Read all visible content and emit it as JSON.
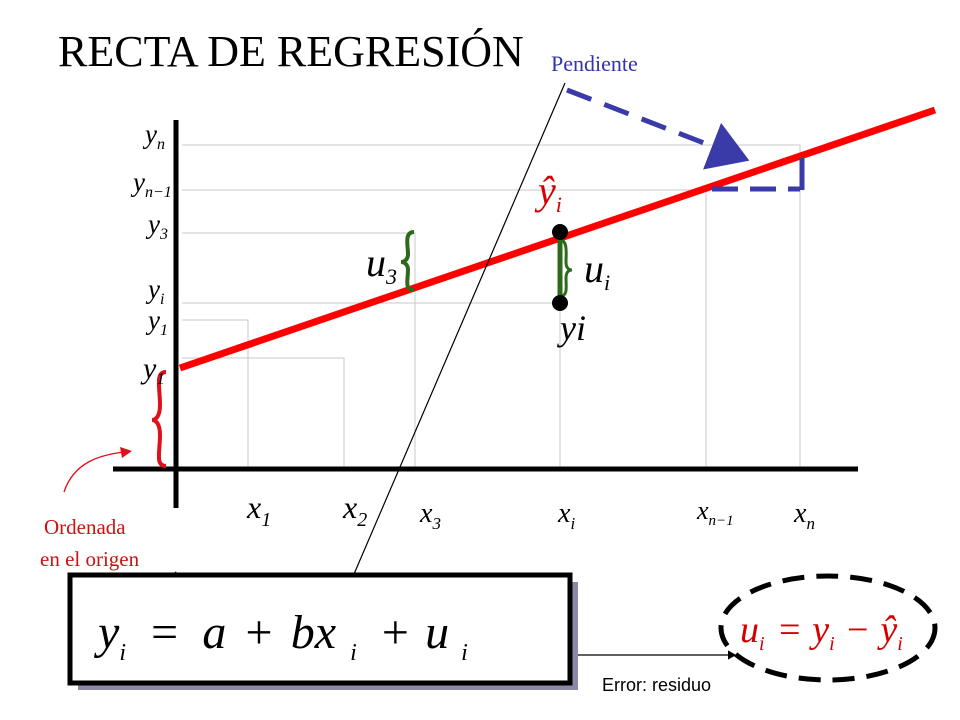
{
  "title": "RECTA DE REGRESIÓN",
  "labels": {
    "slope": "Pendiente",
    "intercept_line1": "Ordenada",
    "intercept_line2": "en el origen",
    "error": "Error: residuo",
    "yi_observed": "yi"
  },
  "colors": {
    "regression_line": "#ff0000",
    "slope_arrow": "#3a3aa8",
    "residual": "#2d6b1a",
    "intercept_brace": "#e0101a",
    "axes": "#000000"
  },
  "x_ticks": [
    {
      "base": "x",
      "sub": "1"
    },
    {
      "base": "x",
      "sub": "2"
    },
    {
      "base": "x",
      "sub": "3"
    },
    {
      "base": "x",
      "sub": "i"
    },
    {
      "base": "x",
      "sub": "n−1"
    },
    {
      "base": "x",
      "sub": "n"
    }
  ],
  "y_ticks": [
    {
      "base": "y",
      "sub": "n"
    },
    {
      "base": "y",
      "sub": "n−1"
    },
    {
      "base": "y",
      "sub": "3"
    },
    {
      "base": "y",
      "sub": "i"
    },
    {
      "base": "y",
      "sub": "1"
    },
    {
      "base": "y",
      "sub": "1"
    }
  ],
  "residual_labels": {
    "u3_base": "u",
    "u3_sub": "3",
    "ui_base": "u",
    "ui_sub": "i",
    "yhat_base": "ŷ",
    "yhat_sub": "i"
  },
  "equation": {
    "lhs_base": "y",
    "lhs_sub": "i",
    "eq": "=",
    "a": "a",
    "plus1": "+",
    "bx": "bx",
    "bx_sub": "i",
    "plus2": "+",
    "u": "u",
    "u_sub": "i"
  },
  "residual_equation": {
    "u": "u",
    "u_sub": "i",
    "eq": "=",
    "y": "y",
    "y_sub": "i",
    "minus": "−",
    "yhat": "ŷ",
    "yhat_sub": "i"
  }
}
